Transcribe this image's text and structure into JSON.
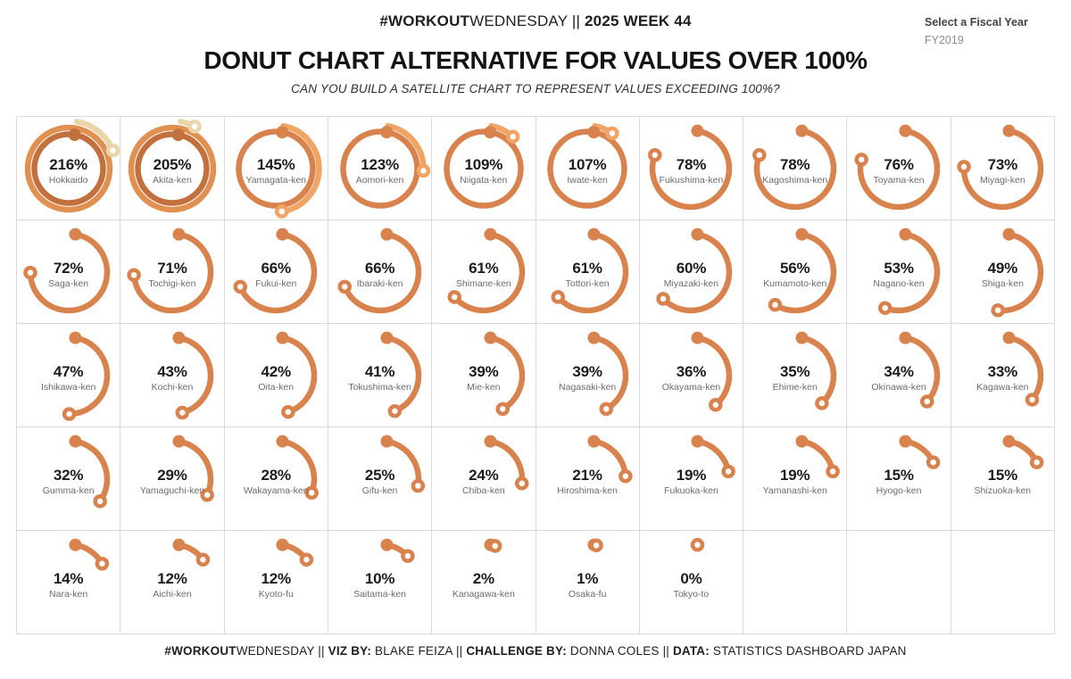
{
  "header": {
    "line1_segments": [
      {
        "t": "#WORKOUT",
        "b": true
      },
      {
        "t": "WEDNESDAY ",
        "b": false
      },
      {
        "t": "|| ",
        "b": false
      },
      {
        "t": "2025 WEEK 44",
        "b": true
      }
    ],
    "title": "DONUT CHART ALTERNATIVE FOR VALUES OVER 100%",
    "subtitle": "CAN YOU BUILD A SATELLITE CHART TO REPRESENT VALUES EXCEEDING 100%?"
  },
  "fiscal_year_control": {
    "label": "Select a Fiscal Year",
    "selected_value": "FY2019"
  },
  "footer": {
    "segments": [
      {
        "t": "#WORKOUT",
        "b": true
      },
      {
        "t": "WEDNESDAY ",
        "b": false
      },
      {
        "t": "|| ",
        "b": false
      },
      {
        "t": "VIZ BY: ",
        "b": true
      },
      {
        "t": "BLAKE FEIZA ",
        "b": false
      },
      {
        "t": " || ",
        "b": false
      },
      {
        "t": "CHALLENGE BY: ",
        "b": true
      },
      {
        "t": "DONNA COLES ",
        "b": false
      },
      {
        "t": "|| ",
        "b": false
      },
      {
        "t": "DATA: ",
        "b": true
      },
      {
        "t": "STATISTICS DASHBOARD JAPAN",
        "b": false
      }
    ]
  },
  "chart_data": {
    "type": "satellite-donut-grid",
    "description": "One circular satellite gauge per prefecture; arc sweeps clockwise from top, 360 deg = 100%. Values over 100% wrap onto an additional, larger-radius, lighter-colored ring. Filled dot marks the start, open dot marks the end.",
    "unit": "%",
    "columns": 10,
    "rows": 5,
    "layer_colors_by_total_laps": {
      "1": [
        "#D8824E"
      ],
      "2": [
        "#D8824E",
        "#EFA566"
      ],
      "3": [
        "#C2703D",
        "#E09152",
        "#EAD5AB"
      ]
    },
    "grid_line_color": "#d9d9d9",
    "points": [
      {
        "name": "Hokkaido",
        "value": 216
      },
      {
        "name": "Akita-ken",
        "value": 205
      },
      {
        "name": "Yamagata-ken",
        "value": 145
      },
      {
        "name": "Aomori-ken",
        "value": 123
      },
      {
        "name": "Niigata-ken",
        "value": 109
      },
      {
        "name": "Iwate-ken",
        "value": 107
      },
      {
        "name": "Fukushima-ken",
        "value": 78
      },
      {
        "name": "Kagoshima-ken",
        "value": 78
      },
      {
        "name": "Toyama-ken",
        "value": 76
      },
      {
        "name": "Miyagi-ken",
        "value": 73
      },
      {
        "name": "Saga-ken",
        "value": 72
      },
      {
        "name": "Tochigi-ken",
        "value": 71
      },
      {
        "name": "Fukui-ken",
        "value": 66
      },
      {
        "name": "Ibaraki-ken",
        "value": 66
      },
      {
        "name": "Shimane-ken",
        "value": 61
      },
      {
        "name": "Tottori-ken",
        "value": 61
      },
      {
        "name": "Miyazaki-ken",
        "value": 60
      },
      {
        "name": "Kumamoto-ken",
        "value": 56
      },
      {
        "name": "Nagano-ken",
        "value": 53
      },
      {
        "name": "Shiga-ken",
        "value": 49
      },
      {
        "name": "Ishikawa-ken",
        "value": 47
      },
      {
        "name": "Kochi-ken",
        "value": 43
      },
      {
        "name": "Oita-ken",
        "value": 42
      },
      {
        "name": "Tokushima-ken",
        "value": 41
      },
      {
        "name": "Mie-ken",
        "value": 39
      },
      {
        "name": "Nagasaki-ken",
        "value": 39
      },
      {
        "name": "Okayama-ken",
        "value": 36
      },
      {
        "name": "Ehime-ken",
        "value": 35
      },
      {
        "name": "Okinawa-ken",
        "value": 34
      },
      {
        "name": "Kagawa-ken",
        "value": 33
      },
      {
        "name": "Gumma-ken",
        "value": 32
      },
      {
        "name": "Yamaguchi-ken",
        "value": 29
      },
      {
        "name": "Wakayama-ken",
        "value": 28
      },
      {
        "name": "Gifu-ken",
        "value": 25
      },
      {
        "name": "Chiba-ken",
        "value": 24
      },
      {
        "name": "Hiroshima-ken",
        "value": 21
      },
      {
        "name": "Fukuoka-ken",
        "value": 19
      },
      {
        "name": "Yamanashi-ken",
        "value": 19
      },
      {
        "name": "Hyogo-ken",
        "value": 15
      },
      {
        "name": "Shizuoka-ken",
        "value": 15
      },
      {
        "name": "Nara-ken",
        "value": 14
      },
      {
        "name": "Aichi-ken",
        "value": 12
      },
      {
        "name": "Kyoto-fu",
        "value": 12
      },
      {
        "name": "Saitama-ken",
        "value": 10
      },
      {
        "name": "Kanagawa-ken",
        "value": 2
      },
      {
        "name": "Osaka-fu",
        "value": 1
      },
      {
        "name": "Tokyo-to",
        "value": 0
      }
    ]
  }
}
